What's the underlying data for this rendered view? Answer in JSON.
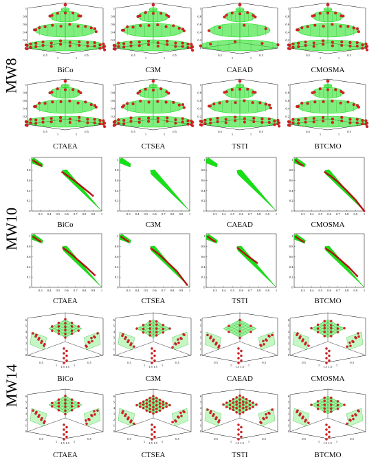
{
  "groups": [
    {
      "label": "MW8",
      "type": "3d-sphere"
    },
    {
      "label": "MW10",
      "type": "2d-front"
    },
    {
      "label": "MW14",
      "type": "3d-plane"
    }
  ],
  "row_algorithms": [
    [
      "BiCo",
      "C3M",
      "CAEAD",
      "CMOSMA"
    ],
    [
      "CTAEA",
      "CTSEA",
      "TSTI",
      "BTCMO"
    ]
  ],
  "colors": {
    "point": "#dd1f1f",
    "surface": "#16e016",
    "axis": "#000000"
  },
  "ticks": {
    "mw8_z": [
      "1",
      "0.8",
      "0.6",
      "0.4",
      "0.2",
      "0"
    ],
    "mw8_xy": [
      "0.5",
      "1"
    ],
    "mw10_y": [
      "1",
      "0.8",
      "0.6",
      "0.4",
      "0.2",
      "0"
    ],
    "mw10_x": [
      "0.3",
      "0.4",
      "0.5",
      "0.6",
      "0.7",
      "0.8",
      "0.9",
      "1"
    ],
    "mw14_z": [
      "6",
      "5",
      "4",
      "3",
      "2",
      "1",
      "0"
    ],
    "mw14_xy": [
      "0.5",
      "1",
      "1.5"
    ]
  },
  "chart_data": [
    {
      "type": "scatter",
      "problem": "MW8",
      "representation": "3d",
      "algorithms": [
        "BiCo",
        "C3M",
        "CAEAD",
        "CMOSMA",
        "CTAEA",
        "CTSEA",
        "TSTI",
        "BTCMO"
      ],
      "zlim": [
        0,
        1
      ]
    },
    {
      "type": "scatter",
      "problem": "MW10",
      "representation": "2d",
      "algorithms": [
        "BiCo",
        "C3M",
        "CAEAD",
        "CMOSMA",
        "CTAEA",
        "CTSEA",
        "TSTI",
        "BTCMO"
      ],
      "xlim": [
        0.2,
        1
      ],
      "ylim": [
        0,
        1.05
      ],
      "true_front_segments": [
        {
          "x": [
            0.2,
            0.3
          ],
          "y": [
            1.0,
            0.88
          ]
        },
        {
          "x": [
            0.55,
            1.0
          ],
          "y": [
            0.78,
            0.0
          ]
        }
      ],
      "points_per_algorithm": {
        "BiCo": [
          [
            0.22,
            0.99
          ],
          [
            0.27,
            0.93
          ],
          [
            0.31,
            0.89
          ],
          [
            0.55,
            0.76
          ],
          [
            0.62,
            0.68
          ],
          [
            0.7,
            0.58
          ],
          [
            0.8,
            0.44
          ],
          [
            0.9,
            0.3
          ]
        ],
        "C3M": [],
        "CAEAD": [],
        "CMOSMA": [
          [
            0.22,
            0.99
          ],
          [
            0.26,
            0.93
          ],
          [
            0.3,
            0.89
          ],
          [
            0.55,
            0.76
          ],
          [
            0.62,
            0.68
          ],
          [
            0.7,
            0.57
          ],
          [
            0.8,
            0.4
          ],
          [
            0.9,
            0.22
          ],
          [
            1.0,
            0.0
          ]
        ],
        "CTAEA": [
          [
            0.22,
            0.99
          ],
          [
            0.27,
            0.93
          ],
          [
            0.3,
            0.9
          ],
          [
            0.56,
            0.77
          ],
          [
            0.63,
            0.68
          ],
          [
            0.72,
            0.55
          ],
          [
            0.82,
            0.4
          ],
          [
            0.92,
            0.24
          ]
        ],
        "CTSEA": [
          [
            0.22,
            0.99
          ],
          [
            0.27,
            0.93
          ],
          [
            0.3,
            0.9
          ],
          [
            0.56,
            0.76
          ],
          [
            0.64,
            0.66
          ],
          [
            0.74,
            0.5
          ],
          [
            0.85,
            0.32
          ],
          [
            0.97,
            0.05
          ]
        ],
        "TSTI": [
          [
            0.22,
            0.99
          ],
          [
            0.27,
            0.93
          ],
          [
            0.3,
            0.9
          ],
          [
            0.56,
            0.77
          ],
          [
            0.63,
            0.67
          ],
          [
            0.7,
            0.58
          ],
          [
            0.78,
            0.48
          ]
        ],
        "BTCMO": [
          [
            0.22,
            0.99
          ],
          [
            0.27,
            0.93
          ],
          [
            0.31,
            0.89
          ],
          [
            0.56,
            0.76
          ],
          [
            0.63,
            0.68
          ],
          [
            0.72,
            0.55
          ],
          [
            0.82,
            0.4
          ],
          [
            0.92,
            0.22
          ]
        ]
      }
    },
    {
      "type": "scatter",
      "problem": "MW14",
      "representation": "3d",
      "algorithms": [
        "BiCo",
        "C3M",
        "CAEAD",
        "CMOSMA",
        "CTAEA",
        "CTSEA",
        "TSTI",
        "BTCMO"
      ],
      "zlim": [
        0,
        6
      ]
    }
  ]
}
